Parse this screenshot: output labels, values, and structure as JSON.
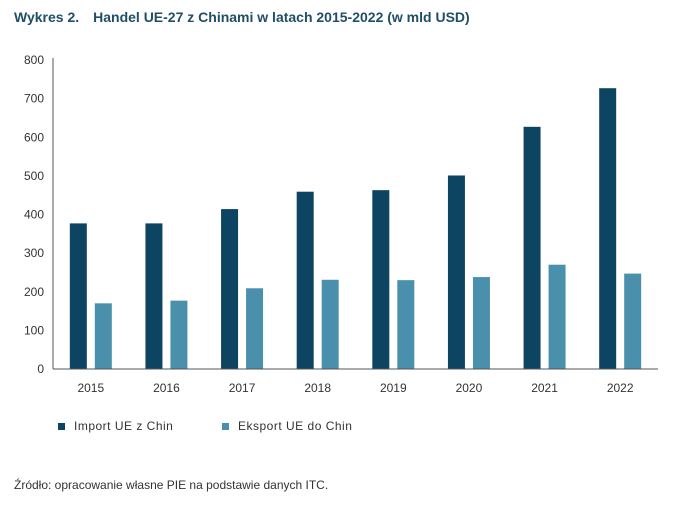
{
  "title": {
    "number": "Wykres 2.",
    "text": "Handel UE-27 z Chinami w latach 2015-2022 (w mld USD)"
  },
  "chart_data": {
    "type": "bar",
    "title": "Handel UE-27 z Chinami w latach 2015-2022 (w mld USD)",
    "xlabel": "",
    "ylabel": "",
    "categories": [
      "2015",
      "2016",
      "2017",
      "2018",
      "2019",
      "2020",
      "2021",
      "2022"
    ],
    "series": [
      {
        "name": "Import UE z Chin",
        "color": "#0d4461",
        "values": [
          377,
          377,
          414,
          459,
          463,
          501,
          627,
          727
        ]
      },
      {
        "name": "Eksport UE do Chin",
        "color": "#4a8fab",
        "values": [
          170,
          177,
          209,
          231,
          230,
          238,
          270,
          247
        ]
      }
    ],
    "ylim": [
      0,
      800
    ],
    "yticks": [
      0,
      100,
      200,
      300,
      400,
      500,
      600,
      700,
      800
    ],
    "grid": false,
    "legend_position": "bottom-left"
  },
  "source": "Źródło: opracowanie własne PIE na podstawie danych ITC."
}
